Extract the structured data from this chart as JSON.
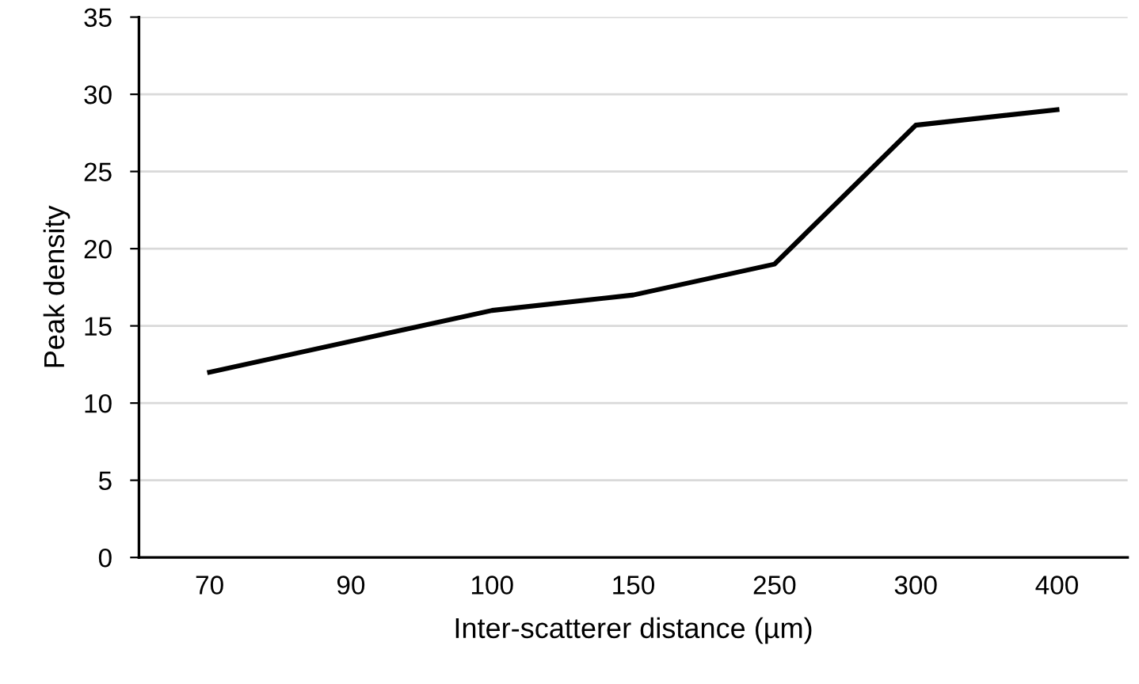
{
  "chart_data": {
    "type": "line",
    "xlabel": "Inter-scatterer distance (µm)",
    "ylabel": "Peak density",
    "categories": [
      "70",
      "90",
      "100",
      "150",
      "250",
      "300",
      "400"
    ],
    "series": [
      {
        "color": "#000000",
        "values": [
          12,
          14,
          16,
          17,
          19,
          28,
          29
        ]
      }
    ],
    "ylim": [
      0,
      35
    ],
    "yticks": [
      0,
      5,
      10,
      15,
      20,
      25,
      30,
      35
    ],
    "grid": "y",
    "marker": "none",
    "line_style": "solid",
    "legend": false
  }
}
